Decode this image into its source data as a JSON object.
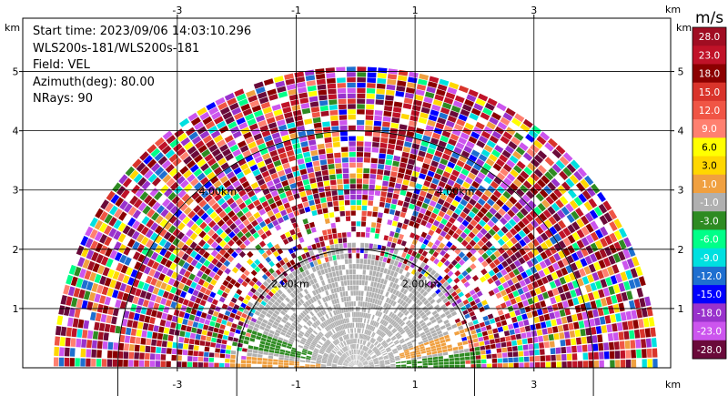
{
  "chart_data": {
    "type": "heatmap",
    "title": "",
    "annotations": [
      "Start time: 2023/09/06 14:03:10.296",
      "WLS200s-181/WLS200s-181",
      "Field: VEL",
      "Azimuth(deg): 80.00",
      "NRays: 90"
    ],
    "x_unit": "km",
    "y_unit": "km",
    "xlim": [
      -5.6,
      5.3
    ],
    "ylim": [
      0,
      5.9
    ],
    "x_ticks": [
      -3,
      -1,
      1,
      3
    ],
    "y_ticks": [
      1,
      2,
      3,
      4,
      5
    ],
    "grid": true,
    "range_rings_km": [
      2,
      4
    ],
    "range_ring_labels": [
      "2.00km",
      "2.00km",
      "4.00km",
      "4.00km"
    ],
    "max_range_km": 5.0,
    "azimuth_deg": 80,
    "n_rays": 90,
    "colorbar": {
      "label": "m/s",
      "tick_labels": [
        "28.0",
        "23.0",
        "18.0",
        "15.0",
        "12.0",
        "9.0",
        "6.0",
        "3.0",
        "1.0",
        "-1.0",
        "-3.0",
        "-6.0",
        "-9.0",
        "-12.0",
        "-15.0",
        "-18.0",
        "-23.0",
        "-28.0"
      ],
      "colors": [
        "#a00d22",
        "#c01228",
        "#8b0000",
        "#d9342b",
        "#f05545",
        "#ff8070",
        "#ffff00",
        "#ffd700",
        "#f0a040",
        "#b0b0b0",
        "#2e8b22",
        "#00ff88",
        "#00e0e0",
        "#1e6fd0",
        "#0000ff",
        "#9932cc",
        "#cc55ee",
        "#6a0a3a"
      ]
    }
  }
}
